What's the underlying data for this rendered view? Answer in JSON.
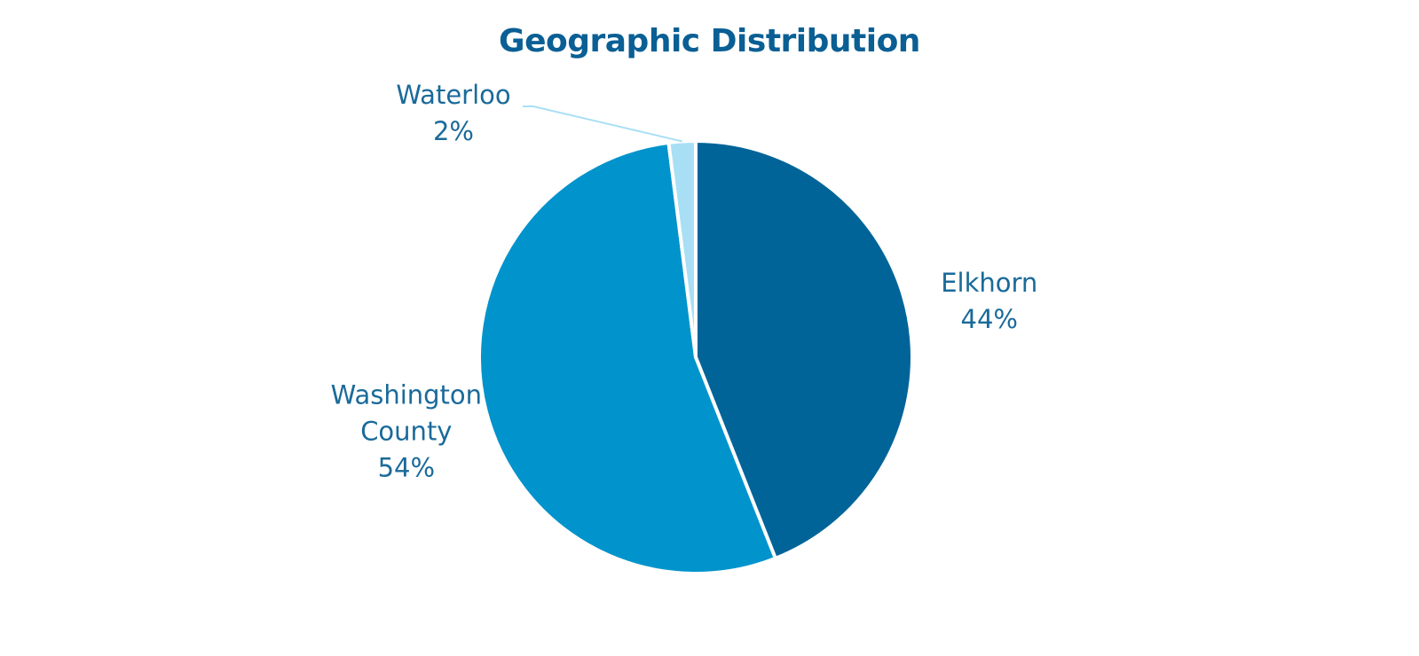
{
  "chart_data": {
    "type": "pie",
    "title": "Geographic Distribution",
    "categories": [
      "Elkhorn",
      "Washington County",
      "Waterloo"
    ],
    "values": [
      44,
      54,
      2
    ],
    "value_labels": [
      "44%",
      "54%",
      "2%"
    ],
    "colors": [
      "#006498",
      "#0093cc",
      "#a9dff5"
    ]
  }
}
